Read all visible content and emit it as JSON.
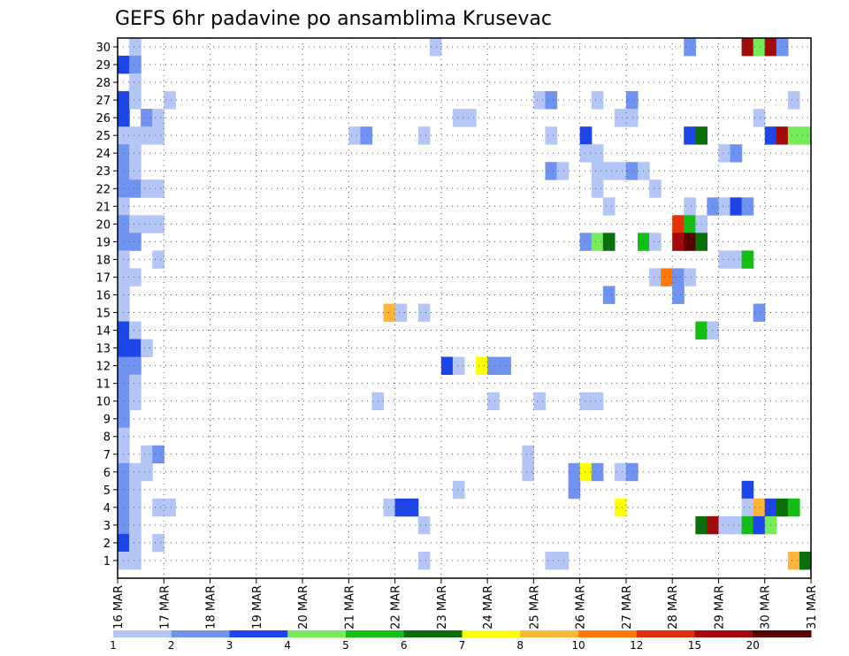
{
  "chart_data": {
    "type": "heatmap",
    "title": "GEFS 6hr padavine po ansamblima Krusevac",
    "xlabel": "",
    "ylabel": "",
    "x_range": [
      "16 MAR",
      "31 MAR"
    ],
    "x_ticks": [
      "16 MAR",
      "17 MAR",
      "18 MAR",
      "19 MAR",
      "20 MAR",
      "21 MAR",
      "22 MAR",
      "23 MAR",
      "24 MAR",
      "25 MAR",
      "26 MAR",
      "27 MAR",
      "28 MAR",
      "29 MAR",
      "30 MAR",
      "31 MAR"
    ],
    "y_ticks": [
      1,
      2,
      3,
      4,
      5,
      6,
      7,
      8,
      9,
      10,
      11,
      12,
      13,
      14,
      15,
      16,
      17,
      18,
      19,
      20,
      21,
      22,
      23,
      24,
      25,
      26,
      27,
      28,
      29,
      30
    ],
    "grid": true,
    "colorbar": {
      "labels": [
        "1",
        "2",
        "3",
        "4",
        "5",
        "6",
        "7",
        "8",
        "10",
        "12",
        "15",
        "20"
      ],
      "colors": [
        "#b3c6f5",
        "#6f93ee",
        "#1e46e6",
        "#76ec5a",
        "#14be14",
        "#0a6e0a",
        "#ffff00",
        "#ffb43c",
        "#ff7a0a",
        "#e1320a",
        "#a00a0a",
        "#5a0000"
      ]
    },
    "cell_encoding": "cells = [day offset from 16 MAR 00Z, member (1-30), color class index 0-11 into colorbar.colors]",
    "cells": [
      [
        0.25,
        30,
        0
      ],
      [
        6.75,
        30,
        0
      ],
      [
        12.25,
        30,
        1
      ],
      [
        13.5,
        30,
        10
      ],
      [
        13.75,
        30,
        3
      ],
      [
        14,
        30,
        10
      ],
      [
        14.25,
        30,
        1
      ],
      [
        0,
        29,
        2
      ],
      [
        0.25,
        29,
        1
      ],
      [
        0.25,
        28,
        0
      ],
      [
        0,
        27,
        2
      ],
      [
        0.25,
        27,
        0
      ],
      [
        1,
        27,
        0
      ],
      [
        9,
        27,
        0
      ],
      [
        9.25,
        27,
        1
      ],
      [
        10.25,
        27,
        0
      ],
      [
        11,
        27,
        1
      ],
      [
        14.5,
        27,
        0
      ],
      [
        0,
        26,
        2
      ],
      [
        0.5,
        26,
        1
      ],
      [
        0.75,
        26,
        0
      ],
      [
        7.25,
        26,
        0
      ],
      [
        7.5,
        26,
        0
      ],
      [
        10.75,
        26,
        0
      ],
      [
        11,
        26,
        0
      ],
      [
        13.75,
        26,
        0
      ],
      [
        0,
        25,
        0
      ],
      [
        0.25,
        25,
        0
      ],
      [
        0.5,
        25,
        0
      ],
      [
        0.75,
        25,
        0
      ],
      [
        5,
        25,
        0
      ],
      [
        5.25,
        25,
        1
      ],
      [
        6.5,
        25,
        0
      ],
      [
        9.25,
        25,
        0
      ],
      [
        10,
        25,
        2
      ],
      [
        12.25,
        25,
        2
      ],
      [
        12.5,
        25,
        5
      ],
      [
        14,
        25,
        2
      ],
      [
        14.25,
        25,
        10
      ],
      [
        14.5,
        25,
        3
      ],
      [
        14.75,
        25,
        3
      ],
      [
        0,
        24,
        1
      ],
      [
        0.25,
        24,
        0
      ],
      [
        10,
        24,
        0
      ],
      [
        10.25,
        24,
        0
      ],
      [
        13,
        24,
        0
      ],
      [
        13.25,
        24,
        1
      ],
      [
        0,
        23,
        1
      ],
      [
        0.25,
        23,
        0
      ],
      [
        9.25,
        23,
        1
      ],
      [
        9.5,
        23,
        0
      ],
      [
        10.25,
        23,
        0
      ],
      [
        10.5,
        23,
        0
      ],
      [
        10.75,
        23,
        0
      ],
      [
        11,
        23,
        1
      ],
      [
        11.25,
        23,
        0
      ],
      [
        0,
        22,
        1
      ],
      [
        0.25,
        22,
        1
      ],
      [
        0.5,
        22,
        0
      ],
      [
        0.75,
        22,
        0
      ],
      [
        10.25,
        22,
        0
      ],
      [
        11.5,
        22,
        0
      ],
      [
        0,
        21,
        0
      ],
      [
        10.5,
        21,
        0
      ],
      [
        12.25,
        21,
        0
      ],
      [
        12.75,
        21,
        1
      ],
      [
        13,
        21,
        0
      ],
      [
        13.25,
        21,
        2
      ],
      [
        13.5,
        21,
        1
      ],
      [
        0,
        20,
        1
      ],
      [
        0.25,
        20,
        0
      ],
      [
        0.5,
        20,
        0
      ],
      [
        0.75,
        20,
        0
      ],
      [
        12,
        20,
        9
      ],
      [
        12.25,
        20,
        4
      ],
      [
        12.5,
        20,
        0
      ],
      [
        0,
        19,
        1
      ],
      [
        0.25,
        19,
        1
      ],
      [
        10,
        19,
        1
      ],
      [
        10.25,
        19,
        3
      ],
      [
        10.5,
        19,
        5
      ],
      [
        11.25,
        19,
        4
      ],
      [
        11.5,
        19,
        0
      ],
      [
        12,
        19,
        10
      ],
      [
        12.25,
        19,
        11
      ],
      [
        12.5,
        19,
        5
      ],
      [
        0,
        18,
        0
      ],
      [
        0.75,
        18,
        0
      ],
      [
        13,
        18,
        0
      ],
      [
        13.25,
        18,
        0
      ],
      [
        13.5,
        18,
        4
      ],
      [
        0,
        17,
        0
      ],
      [
        0.25,
        17,
        0
      ],
      [
        11.5,
        17,
        0
      ],
      [
        11.75,
        17,
        8
      ],
      [
        12,
        17,
        1
      ],
      [
        12.25,
        17,
        0
      ],
      [
        0,
        16,
        0
      ],
      [
        10.5,
        16,
        1
      ],
      [
        12,
        16,
        1
      ],
      [
        0,
        15,
        0
      ],
      [
        5.75,
        15,
        7
      ],
      [
        6,
        15,
        0
      ],
      [
        6.5,
        15,
        0
      ],
      [
        13.75,
        15,
        1
      ],
      [
        0,
        14,
        2
      ],
      [
        0.25,
        14,
        0
      ],
      [
        12.5,
        14,
        4
      ],
      [
        12.75,
        14,
        0
      ],
      [
        0,
        13,
        2
      ],
      [
        0.25,
        13,
        2
      ],
      [
        0.5,
        13,
        0
      ],
      [
        0,
        12,
        1
      ],
      [
        0.25,
        12,
        1
      ],
      [
        7,
        12,
        2
      ],
      [
        7.25,
        12,
        0
      ],
      [
        7.75,
        12,
        6
      ],
      [
        8,
        12,
        1
      ],
      [
        8.25,
        12,
        1
      ],
      [
        0,
        11,
        1
      ],
      [
        0.25,
        11,
        0
      ],
      [
        0,
        10,
        1
      ],
      [
        0.25,
        10,
        0
      ],
      [
        5.5,
        10,
        0
      ],
      [
        8,
        10,
        0
      ],
      [
        9,
        10,
        0
      ],
      [
        10,
        10,
        0
      ],
      [
        10.25,
        10,
        0
      ],
      [
        0,
        9,
        1
      ],
      [
        0,
        8,
        0
      ],
      [
        0,
        7,
        0
      ],
      [
        0.5,
        7,
        0
      ],
      [
        0.75,
        7,
        1
      ],
      [
        8.75,
        7,
        0
      ],
      [
        0,
        6,
        1
      ],
      [
        0.25,
        6,
        0
      ],
      [
        0.5,
        6,
        0
      ],
      [
        8.75,
        6,
        0
      ],
      [
        9.75,
        6,
        1
      ],
      [
        10,
        6,
        6
      ],
      [
        10.25,
        6,
        1
      ],
      [
        10.75,
        6,
        0
      ],
      [
        11,
        6,
        1
      ],
      [
        0,
        5,
        1
      ],
      [
        0.25,
        5,
        0
      ],
      [
        7.25,
        5,
        0
      ],
      [
        9.75,
        5,
        1
      ],
      [
        13.5,
        5,
        2
      ],
      [
        0,
        4,
        1
      ],
      [
        0.25,
        4,
        0
      ],
      [
        0.75,
        4,
        0
      ],
      [
        1,
        4,
        0
      ],
      [
        5.75,
        4,
        0
      ],
      [
        6,
        4,
        2
      ],
      [
        6.25,
        4,
        2
      ],
      [
        10.75,
        4,
        6
      ],
      [
        13.5,
        4,
        0
      ],
      [
        13.75,
        4,
        7
      ],
      [
        14,
        4,
        2
      ],
      [
        14.25,
        4,
        5
      ],
      [
        14.5,
        4,
        4
      ],
      [
        0,
        3,
        1
      ],
      [
        0.25,
        3,
        0
      ],
      [
        6.5,
        3,
        0
      ],
      [
        12.5,
        3,
        5
      ],
      [
        12.75,
        3,
        10
      ],
      [
        13,
        3,
        0
      ],
      [
        13.25,
        3,
        0
      ],
      [
        13.5,
        3,
        4
      ],
      [
        13.75,
        3,
        2
      ],
      [
        14,
        3,
        3
      ],
      [
        0,
        2,
        2
      ],
      [
        0.25,
        2,
        0
      ],
      [
        0.75,
        2,
        0
      ],
      [
        0,
        1,
        0
      ],
      [
        0.25,
        1,
        0
      ],
      [
        6.5,
        1,
        0
      ],
      [
        9.25,
        1,
        0
      ],
      [
        9.5,
        1,
        0
      ],
      [
        14.5,
        1,
        7
      ],
      [
        14.75,
        1,
        5
      ]
    ]
  }
}
